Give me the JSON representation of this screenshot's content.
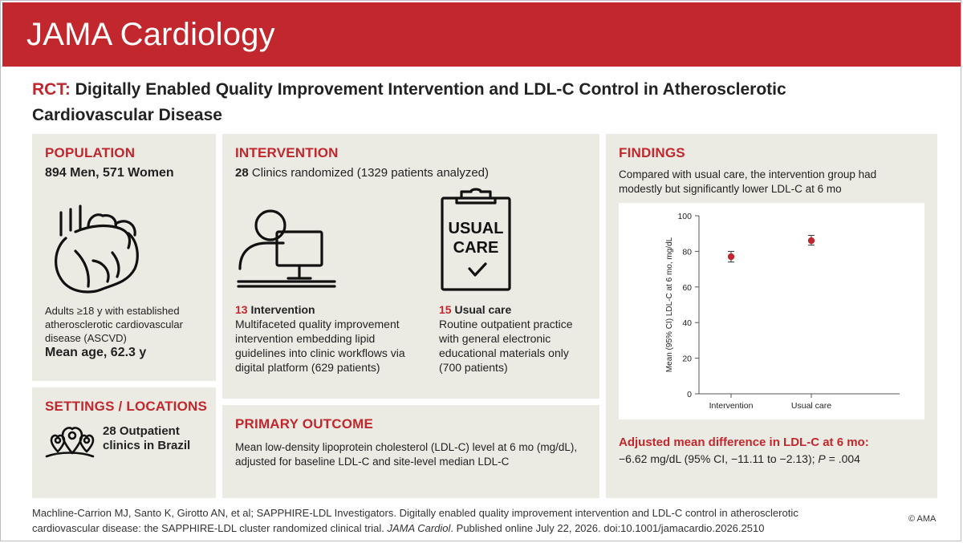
{
  "header": {
    "journal": "JAMA Cardiology"
  },
  "title": {
    "tag": "RCT:",
    "text": "Digitally Enabled Quality Improvement Intervention and LDL-C Control in Atherosclerotic Cardiovascular Disease"
  },
  "population": {
    "heading": "POPULATION",
    "counts": "894 Men, 571 Women",
    "description": "Adults ≥18 y with established atherosclerotic cardiovascular disease (ASCVD)",
    "mean_age": "Mean age, 62.3 y",
    "icon": "heart-icon"
  },
  "settings": {
    "heading": "SETTINGS / LOCATIONS",
    "text": "28 Outpatient clinics in Brazil",
    "icon": "location-pins-icon"
  },
  "intervention": {
    "heading": "INTERVENTION",
    "clinics_num": "28",
    "clinics_text": "Clinics randomized (1329 patients analyzed)",
    "arm1": {
      "num": "13",
      "name": "Intervention",
      "desc": "Multifaceted quality improvement intervention embedding lipid guidelines into clinic workflows via digital platform (629 patients)",
      "icon": "computer-user-icon"
    },
    "arm2": {
      "num": "15",
      "name": "Usual care",
      "desc": "Routine outpatient practice with general electronic educational materials only (700 patients)",
      "icon": "clipboard-icon",
      "icon_text_1": "USUAL",
      "icon_text_2": "CARE"
    }
  },
  "primary_outcome": {
    "heading": "PRIMARY OUTCOME",
    "text": "Mean low-density lipoprotein cholesterol (LDL-C) level at 6 mo (mg/dL), adjusted for baseline LDL-C and site-level median LDL-C"
  },
  "findings": {
    "heading": "FINDINGS",
    "intro": "Compared with usual care, the intervention group had modestly but significantly lower LDL-C at 6 mo",
    "diff_label": "Adjusted mean difference in LDL-C at 6 mo:",
    "diff_value_pre": "−6.62 mg/dL (95% CI, −11.11 to −2.13); ",
    "diff_p_label": "P",
    "diff_p_value": " = .004"
  },
  "chart_data": {
    "type": "scatter",
    "categories": [
      "Intervention",
      "Usual care"
    ],
    "values": [
      77,
      86
    ],
    "ci_low": [
      74,
      83.5
    ],
    "ci_high": [
      80,
      89
    ],
    "ylabel": "Mean (95% CI) LDL-C at 6 mo, mg/dL",
    "ylim": [
      0,
      100
    ],
    "yticks": [
      0,
      20,
      40,
      60,
      80,
      100
    ],
    "color": "#c1272d"
  },
  "footer": {
    "citation_1": "Machline-Carrion MJ, Santo K, Girotto AN, et al; SAPPHIRE-LDL Investigators. Digitally enabled quality improvement intervention and LDL-C control in atherosclerotic cardiovascular disease: the SAPPHIRE-LDL cluster randomized clinical trial. ",
    "journal": "JAMA Cardiol",
    "citation_2": ". Published online July 22, 2026. doi:10.1001/jamacardio.2026.2510",
    "copyright": "© AMA"
  },
  "colors": {
    "accent": "#c1272d",
    "panel": "#ecebe3"
  }
}
